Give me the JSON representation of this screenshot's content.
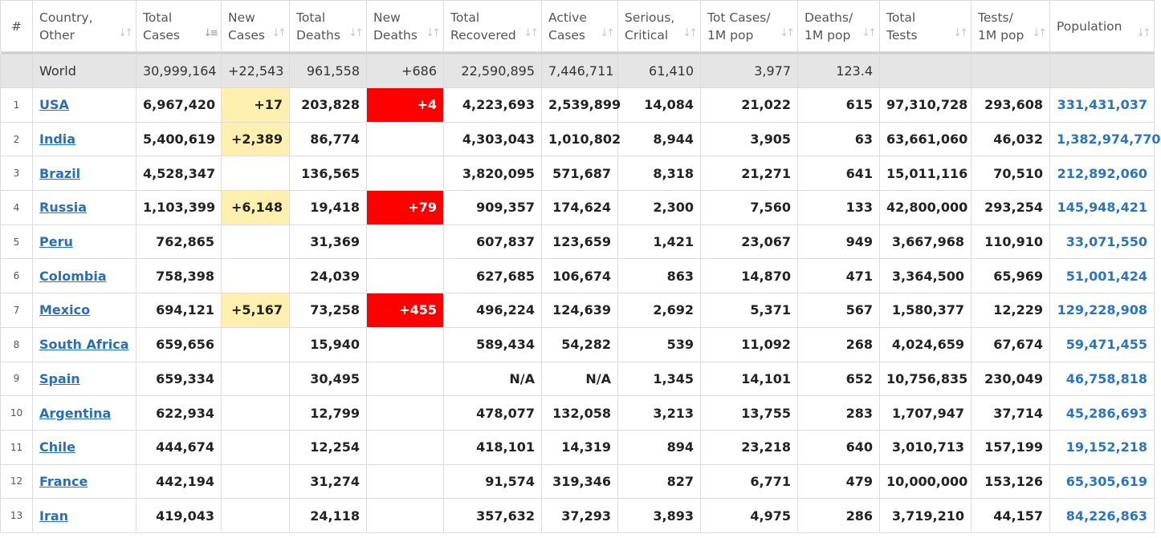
{
  "headers": [
    {
      "key": "rank",
      "lines": [
        "#",
        ""
      ]
    },
    {
      "key": "country",
      "lines": [
        "Country,",
        "Other"
      ]
    },
    {
      "key": "total_cases",
      "lines": [
        "Total",
        "Cases"
      ]
    },
    {
      "key": "new_cases",
      "lines": [
        "New",
        "Cases"
      ]
    },
    {
      "key": "total_deaths",
      "lines": [
        "Total",
        "Deaths"
      ]
    },
    {
      "key": "new_deaths",
      "lines": [
        "New",
        "Deaths"
      ]
    },
    {
      "key": "total_recovered",
      "lines": [
        "Total",
        "Recovered"
      ]
    },
    {
      "key": "active_cases",
      "lines": [
        "Active",
        "Cases"
      ]
    },
    {
      "key": "serious_critical",
      "lines": [
        "Serious,",
        "Critical"
      ]
    },
    {
      "key": "tot_cases_per_1m",
      "lines": [
        "Tot Cases/",
        "1M pop"
      ]
    },
    {
      "key": "deaths_per_1m",
      "lines": [
        "Deaths/",
        "1M pop"
      ]
    },
    {
      "key": "total_tests",
      "lines": [
        "Total",
        "Tests"
      ]
    },
    {
      "key": "tests_per_1m",
      "lines": [
        "Tests/",
        "1M pop"
      ]
    },
    {
      "key": "population",
      "lines": [
        "Population",
        ""
      ]
    }
  ],
  "world": {
    "country": "World",
    "total_cases": "30,999,164",
    "new_cases": "+22,543",
    "total_deaths": "961,558",
    "new_deaths": "+686",
    "total_recovered": "22,590,895",
    "active_cases": "7,446,711",
    "serious_critical": "61,410",
    "tot_cases_per_1m": "3,977",
    "deaths_per_1m": "123.4",
    "total_tests": "",
    "tests_per_1m": "",
    "population": ""
  },
  "rows": [
    {
      "rank": "1",
      "country": "USA",
      "total_cases": "6,967,420",
      "new_cases": "+17",
      "total_deaths": "203,828",
      "new_deaths": "+4",
      "total_recovered": "4,223,693",
      "active_cases": "2,539,899",
      "serious_critical": "14,084",
      "tot_cases_per_1m": "21,022",
      "deaths_per_1m": "615",
      "total_tests": "97,310,728",
      "tests_per_1m": "293,608",
      "population": "331,431,037"
    },
    {
      "rank": "2",
      "country": "India",
      "total_cases": "5,400,619",
      "new_cases": "+2,389",
      "total_deaths": "86,774",
      "new_deaths": "",
      "total_recovered": "4,303,043",
      "active_cases": "1,010,802",
      "serious_critical": "8,944",
      "tot_cases_per_1m": "3,905",
      "deaths_per_1m": "63",
      "total_tests": "63,661,060",
      "tests_per_1m": "46,032",
      "population": "1,382,974,770"
    },
    {
      "rank": "3",
      "country": "Brazil",
      "total_cases": "4,528,347",
      "new_cases": "",
      "total_deaths": "136,565",
      "new_deaths": "",
      "total_recovered": "3,820,095",
      "active_cases": "571,687",
      "serious_critical": "8,318",
      "tot_cases_per_1m": "21,271",
      "deaths_per_1m": "641",
      "total_tests": "15,011,116",
      "tests_per_1m": "70,510",
      "population": "212,892,060"
    },
    {
      "rank": "4",
      "country": "Russia",
      "total_cases": "1,103,399",
      "new_cases": "+6,148",
      "total_deaths": "19,418",
      "new_deaths": "+79",
      "total_recovered": "909,357",
      "active_cases": "174,624",
      "serious_critical": "2,300",
      "tot_cases_per_1m": "7,560",
      "deaths_per_1m": "133",
      "total_tests": "42,800,000",
      "tests_per_1m": "293,254",
      "population": "145,948,421"
    },
    {
      "rank": "5",
      "country": "Peru",
      "total_cases": "762,865",
      "new_cases": "",
      "total_deaths": "31,369",
      "new_deaths": "",
      "total_recovered": "607,837",
      "active_cases": "123,659",
      "serious_critical": "1,421",
      "tot_cases_per_1m": "23,067",
      "deaths_per_1m": "949",
      "total_tests": "3,667,968",
      "tests_per_1m": "110,910",
      "population": "33,071,550"
    },
    {
      "rank": "6",
      "country": "Colombia",
      "total_cases": "758,398",
      "new_cases": "",
      "total_deaths": "24,039",
      "new_deaths": "",
      "total_recovered": "627,685",
      "active_cases": "106,674",
      "serious_critical": "863",
      "tot_cases_per_1m": "14,870",
      "deaths_per_1m": "471",
      "total_tests": "3,364,500",
      "tests_per_1m": "65,969",
      "population": "51,001,424"
    },
    {
      "rank": "7",
      "country": "Mexico",
      "total_cases": "694,121",
      "new_cases": "+5,167",
      "total_deaths": "73,258",
      "new_deaths": "+455",
      "total_recovered": "496,224",
      "active_cases": "124,639",
      "serious_critical": "2,692",
      "tot_cases_per_1m": "5,371",
      "deaths_per_1m": "567",
      "total_tests": "1,580,377",
      "tests_per_1m": "12,229",
      "population": "129,228,908"
    },
    {
      "rank": "8",
      "country": "South Africa",
      "total_cases": "659,656",
      "new_cases": "",
      "total_deaths": "15,940",
      "new_deaths": "",
      "total_recovered": "589,434",
      "active_cases": "54,282",
      "serious_critical": "539",
      "tot_cases_per_1m": "11,092",
      "deaths_per_1m": "268",
      "total_tests": "4,024,659",
      "tests_per_1m": "67,674",
      "population": "59,471,455"
    },
    {
      "rank": "9",
      "country": "Spain",
      "total_cases": "659,334",
      "new_cases": "",
      "total_deaths": "30,495",
      "new_deaths": "",
      "total_recovered": "N/A",
      "active_cases": "N/A",
      "serious_critical": "1,345",
      "tot_cases_per_1m": "14,101",
      "deaths_per_1m": "652",
      "total_tests": "10,756,835",
      "tests_per_1m": "230,049",
      "population": "46,758,818"
    },
    {
      "rank": "10",
      "country": "Argentina",
      "total_cases": "622,934",
      "new_cases": "",
      "total_deaths": "12,799",
      "new_deaths": "",
      "total_recovered": "478,077",
      "active_cases": "132,058",
      "serious_critical": "3,213",
      "tot_cases_per_1m": "13,755",
      "deaths_per_1m": "283",
      "total_tests": "1,707,947",
      "tests_per_1m": "37,714",
      "population": "45,286,693"
    },
    {
      "rank": "11",
      "country": "Chile",
      "total_cases": "444,674",
      "new_cases": "",
      "total_deaths": "12,254",
      "new_deaths": "",
      "total_recovered": "418,101",
      "active_cases": "14,319",
      "serious_critical": "894",
      "tot_cases_per_1m": "23,218",
      "deaths_per_1m": "640",
      "total_tests": "3,010,713",
      "tests_per_1m": "157,199",
      "population": "19,152,218"
    },
    {
      "rank": "12",
      "country": "France",
      "total_cases": "442,194",
      "new_cases": "",
      "total_deaths": "31,274",
      "new_deaths": "",
      "total_recovered": "91,574",
      "active_cases": "319,346",
      "serious_critical": "827",
      "tot_cases_per_1m": "6,771",
      "deaths_per_1m": "479",
      "total_tests": "10,000,000",
      "tests_per_1m": "153,126",
      "population": "65,305,619"
    },
    {
      "rank": "13",
      "country": "Iran",
      "total_cases": "419,043",
      "new_cases": "",
      "total_deaths": "24,118",
      "new_deaths": "",
      "total_recovered": "357,632",
      "active_cases": "37,293",
      "serious_critical": "3,893",
      "tot_cases_per_1m": "4,975",
      "deaths_per_1m": "286",
      "total_tests": "3,719,210",
      "tests_per_1m": "44,157",
      "population": "84,226,863"
    }
  ],
  "colors": {
    "new_cases_highlight": "#fff0b0",
    "new_deaths_highlight": "#ff0000",
    "country_link": "#2a6fb0",
    "population_text": "#2a75bb",
    "world_row_bg": "#e5e5e5"
  },
  "icons": {
    "sort": "sort-arrows-icon",
    "sort_active": "sort-desc-active-icon"
  }
}
